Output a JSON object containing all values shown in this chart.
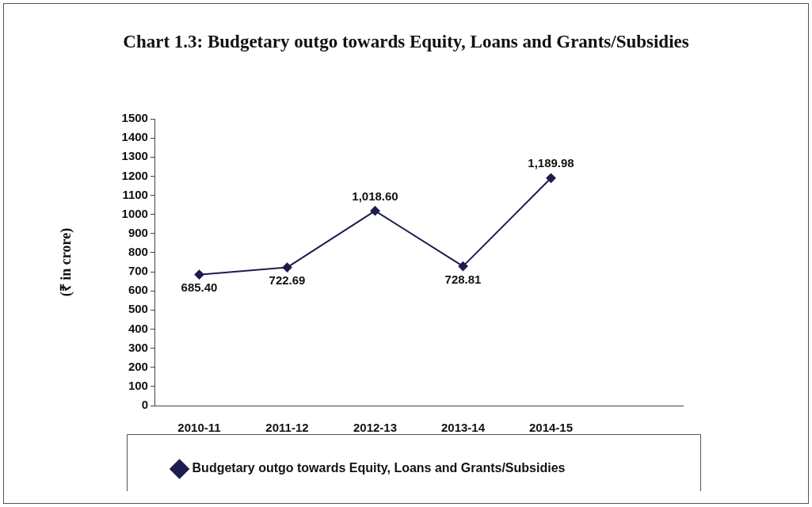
{
  "chart_data": {
    "type": "line",
    "title": "Chart 1.3: Budgetary outgo towards Equity, Loans and Grants/Subsidies",
    "ylabel": "(₹ in crore)",
    "categories": [
      "2010-11",
      "2011-12",
      "2012-13",
      "2013-14",
      "2014-15",
      null
    ],
    "series": [
      {
        "name": "Budgetary outgo towards Equity, Loans and Grants/Subsidies",
        "color": "#1c1c4e",
        "values": [
          685.4,
          722.69,
          1018.6,
          728.81,
          1189.98,
          null
        ],
        "value_labels": [
          "685.40",
          "722.69",
          "1,018.60",
          "728.81",
          "1,189.98",
          null
        ]
      }
    ],
    "ylim": [
      0,
      1500
    ],
    "yticks": [
      0,
      100,
      200,
      300,
      400,
      500,
      600,
      700,
      800,
      900,
      1000,
      1100,
      1200,
      1300,
      1400,
      1500
    ],
    "grid": false,
    "legend": "bottom",
    "marker": "diamond",
    "line_style": "solid"
  }
}
